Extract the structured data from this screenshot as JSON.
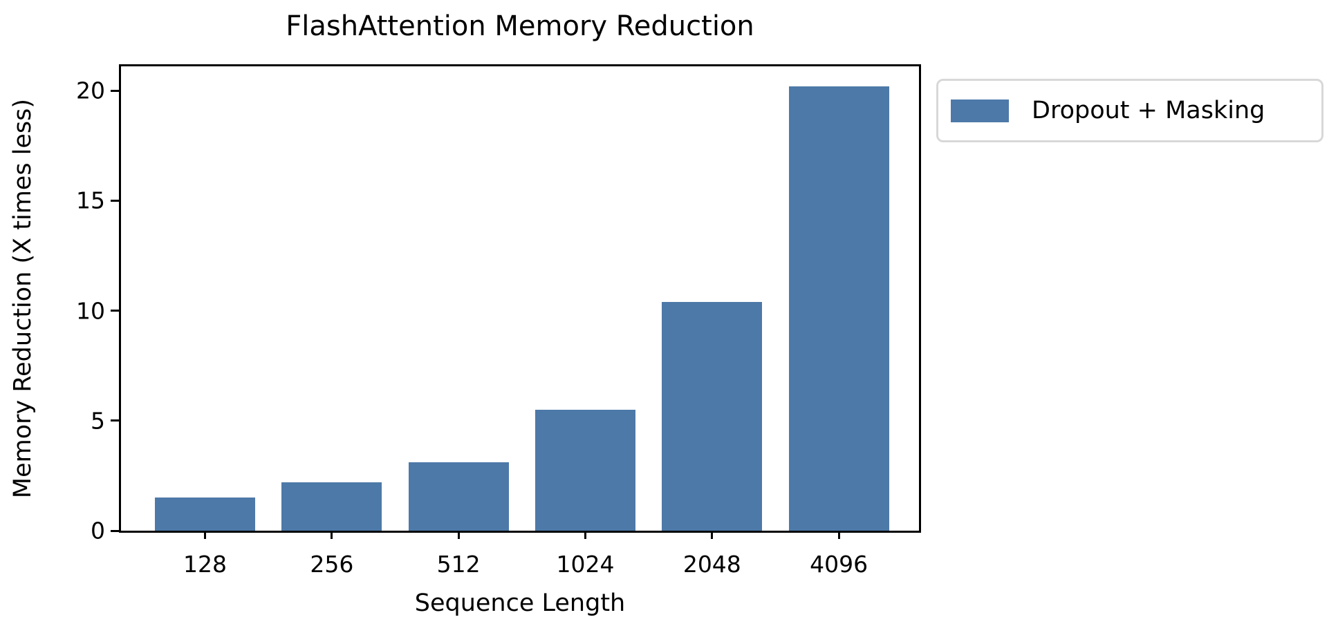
{
  "chart_data": {
    "type": "bar",
    "title": "FlashAttention Memory Reduction",
    "xlabel": "Sequence Length",
    "ylabel": "Memory Reduction (X times less)",
    "categories": [
      "128",
      "256",
      "512",
      "1024",
      "2048",
      "4096"
    ],
    "series": [
      {
        "name": "Dropout + Masking",
        "values": [
          1.5,
          2.2,
          3.1,
          5.5,
          10.4,
          20.2
        ]
      }
    ],
    "yticks": [
      0,
      5,
      10,
      15,
      20
    ],
    "ylim": [
      0,
      21.1
    ],
    "grid": false,
    "legend_position": "outside upper right",
    "bar_color": "#4d79a8",
    "axis_color": "#000000",
    "legend_border_color": "#d8d8d8"
  }
}
